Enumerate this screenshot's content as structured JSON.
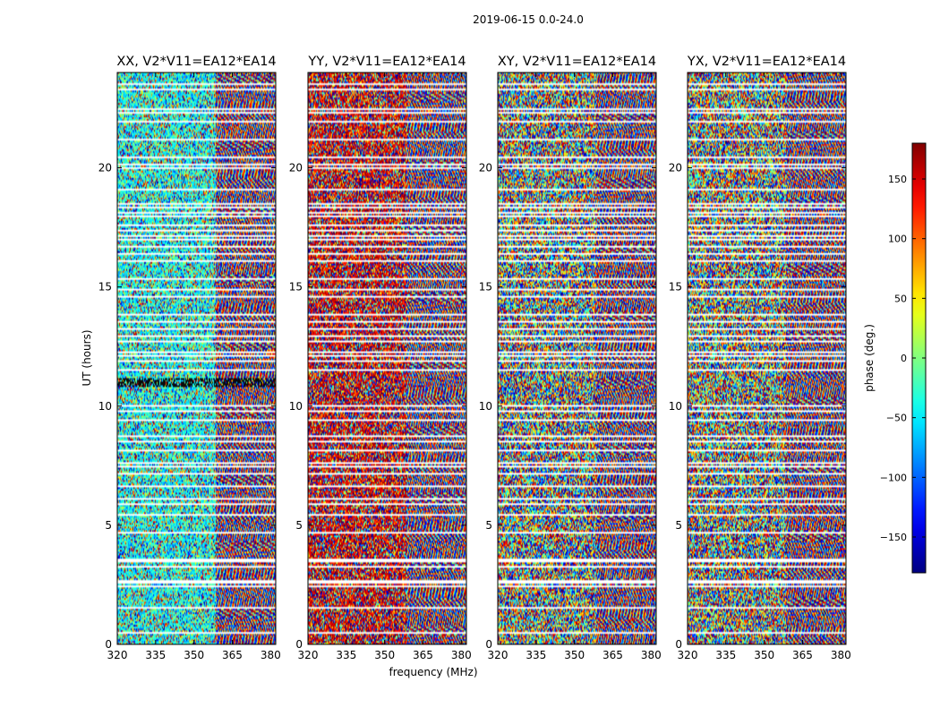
{
  "figure": {
    "suptitle": "2019-06-15 0.0-24.0"
  },
  "chart_data": {
    "type": "heatmap",
    "title": "2019-06-15 0.0-24.0",
    "xlabel": "frequency (MHz)",
    "ylabel": "UT (hours)",
    "xlim": [
      320,
      382
    ],
    "ylim": [
      0,
      24
    ],
    "xticks": [
      320,
      335,
      350,
      365,
      380
    ],
    "yticks": [
      0,
      5,
      10,
      15,
      20
    ],
    "colormap": "jet",
    "colorbar": {
      "label": "phase (deg.)",
      "range": [
        -180,
        180
      ],
      "ticks": [
        150,
        100,
        50,
        0,
        -50,
        -100,
        -150
      ],
      "tick_labels": [
        "150",
        "100",
        "50",
        "0",
        "−50",
        "−100",
        "−150"
      ]
    },
    "panels": [
      {
        "title": "XX, V2*V11=EA12*EA14",
        "polarization": "XX",
        "phase_bias": -40
      },
      {
        "title": "YY, V2*V11=EA12*EA14",
        "polarization": "YY",
        "phase_bias": 150
      },
      {
        "title": "XY, V2*V11=EA12*EA14",
        "polarization": "XY",
        "phase_bias": 0
      },
      {
        "title": "YX, V2*V11=EA12*EA14",
        "polarization": "YX",
        "phase_bias": 0
      }
    ],
    "flagged_ut_hours": [
      0.52,
      1.55,
      1.6,
      2.45,
      2.6,
      2.68,
      3.3,
      3.52,
      3.6,
      4.75,
      5.45,
      5.9,
      6.15,
      6.65,
      7.2,
      7.5,
      7.65,
      8.15,
      8.55,
      8.75,
      9.45,
      9.8,
      10.05,
      11.55,
      11.9,
      12.15,
      12.3,
      12.75,
      13.0,
      13.3,
      13.55,
      13.9,
      14.6,
      14.95,
      15.35,
      16.1,
      16.45,
      16.75,
      17.0,
      17.15,
      17.4,
      17.6,
      18.0,
      18.15,
      18.4,
      18.55,
      19.1,
      20.0,
      20.15,
      20.5,
      21.25,
      22.0,
      22.35,
      22.5,
      23.3,
      23.55
    ]
  }
}
